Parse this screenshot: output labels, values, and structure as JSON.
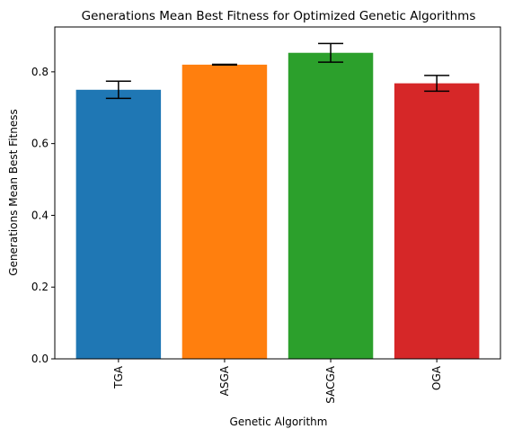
{
  "chart_data": {
    "type": "bar",
    "title": "Generations Mean Best Fitness for Optimized Genetic Algorithms",
    "xlabel": "Genetic Algorithm",
    "ylabel": "Generations Mean Best Fitness",
    "categories": [
      "TGA",
      "ASGA",
      "SACGA",
      "OGA"
    ],
    "values": [
      0.75,
      0.82,
      0.853,
      0.768
    ],
    "errors": [
      0.024,
      0.001,
      0.026,
      0.022
    ],
    "colors": [
      "#1f77b4",
      "#ff7f0e",
      "#2ca02c",
      "#d62728"
    ],
    "ylim": [
      0,
      0.925
    ],
    "yticks": [
      0.0,
      0.2,
      0.4,
      0.6,
      0.8
    ],
    "ytick_labels": [
      "0.0",
      "0.2",
      "0.4",
      "0.6",
      "0.8"
    ],
    "grid": false,
    "legend": "none"
  }
}
